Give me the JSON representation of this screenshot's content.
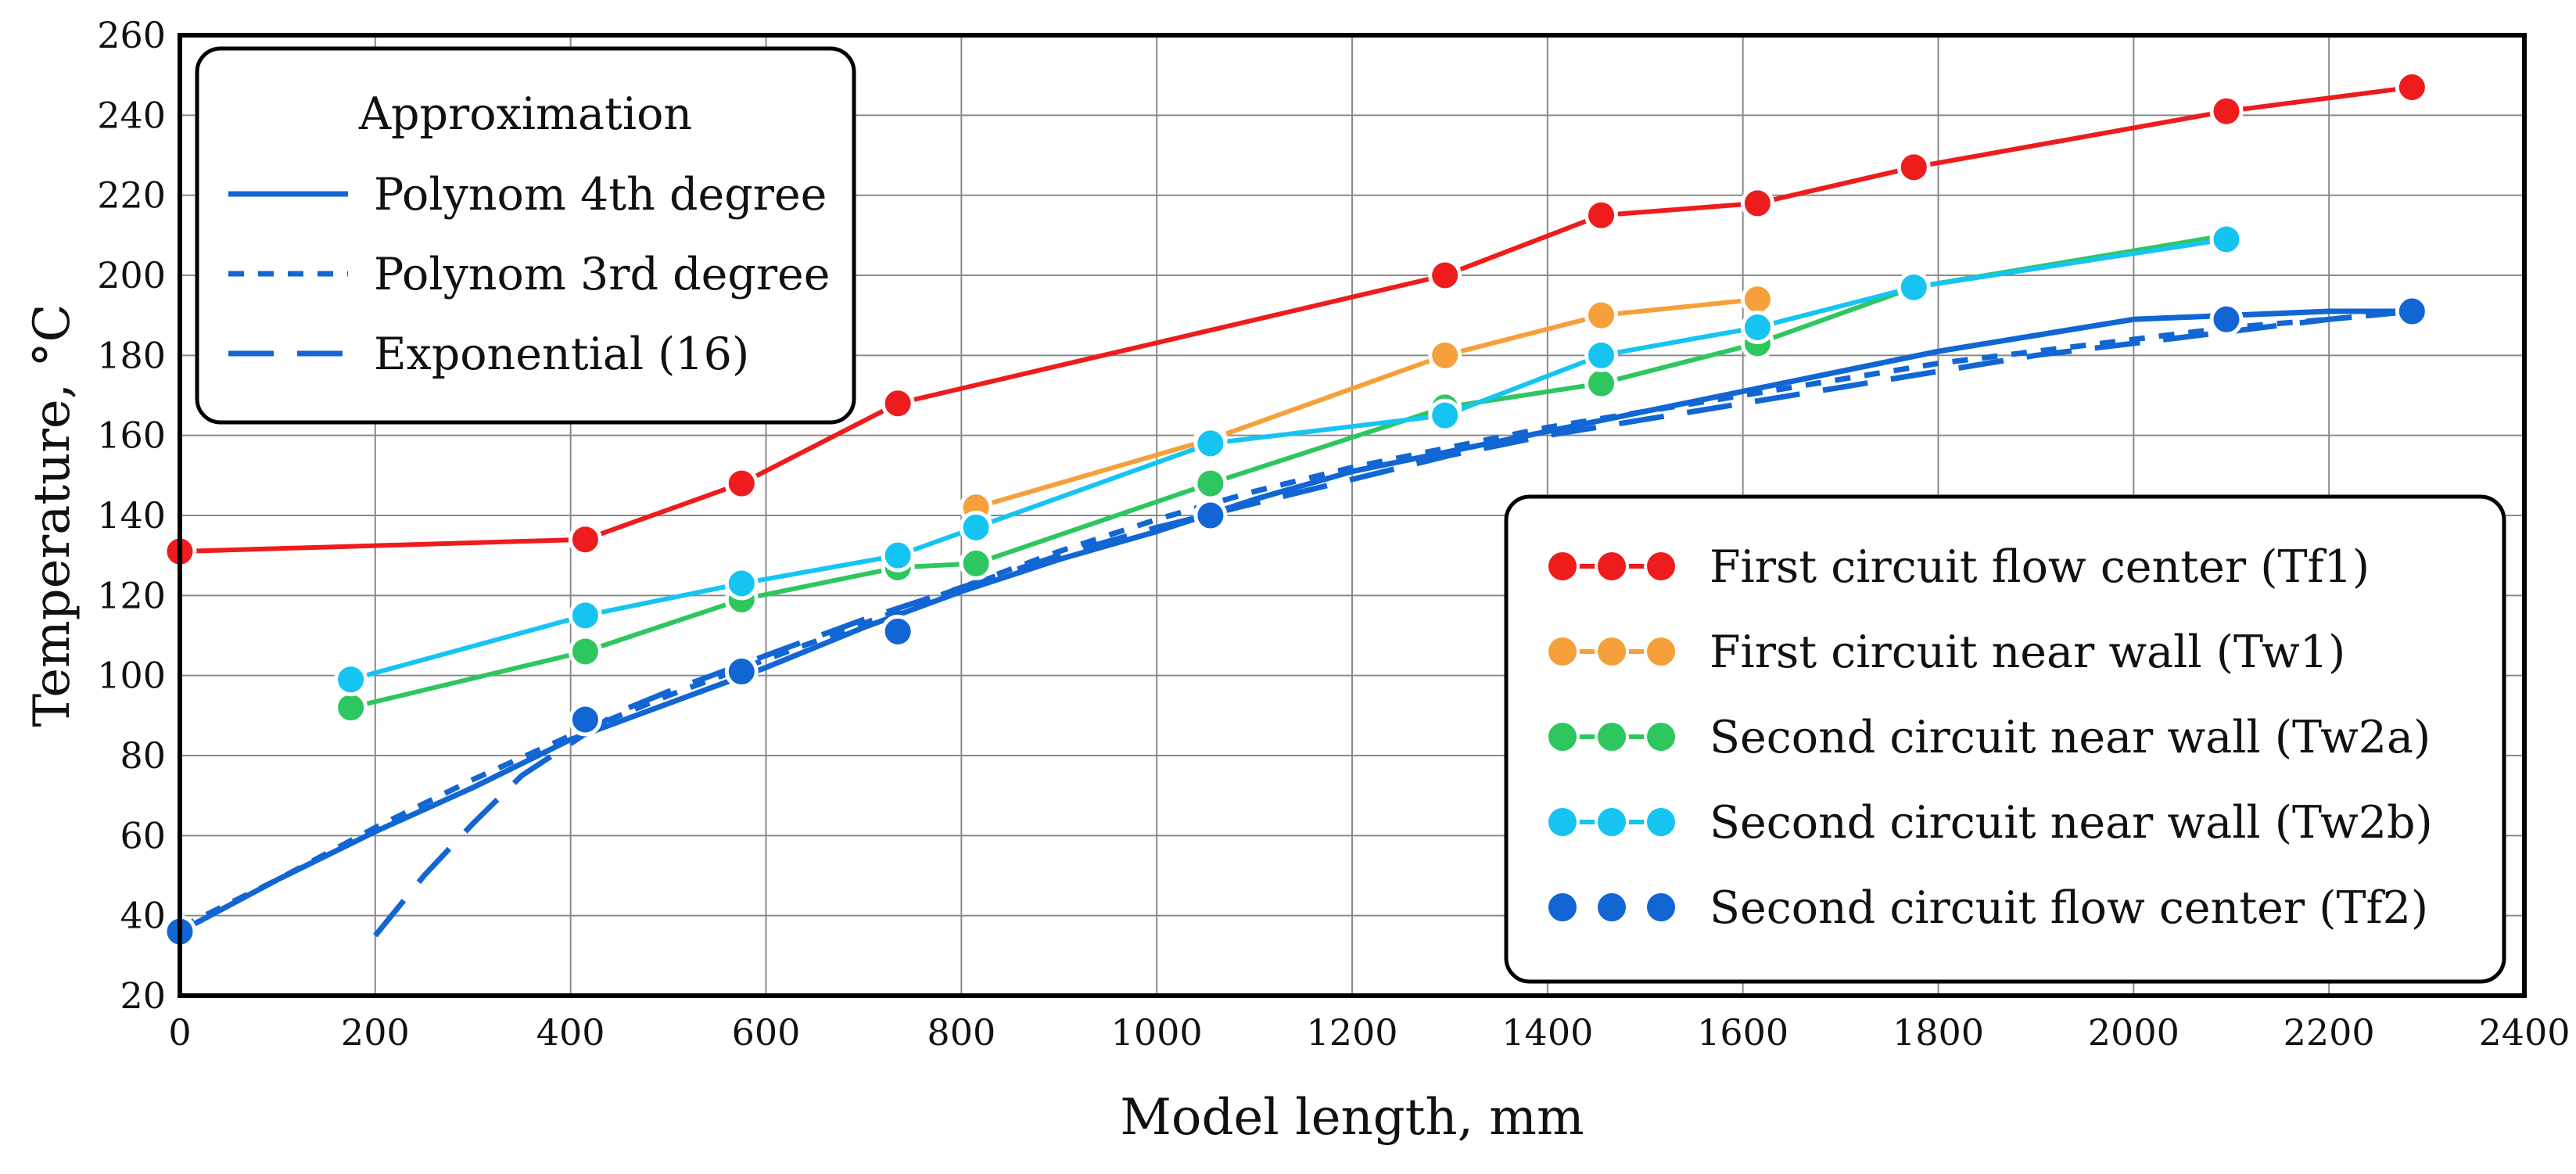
{
  "chart_data": {
    "type": "line",
    "title": "",
    "xlabel": "Model length, mm",
    "ylabel": "Temperature, °C",
    "xlim": [
      0,
      2400
    ],
    "ylim": [
      20,
      260
    ],
    "xticks": [
      0,
      200,
      400,
      600,
      800,
      1000,
      1200,
      1400,
      1600,
      1800,
      2000,
      2200,
      2400
    ],
    "yticks": [
      20,
      40,
      60,
      80,
      100,
      120,
      140,
      160,
      180,
      200,
      220,
      240,
      260
    ],
    "grid": true,
    "series": [
      {
        "name": "First circuit flow center (Tf1)",
        "color": "#ee1c1c",
        "style": "line-markers",
        "x": [
          0,
          415,
          575,
          735,
          1295,
          1455,
          1615,
          1775,
          2095,
          2285
        ],
        "y": [
          131,
          134,
          148,
          168,
          200,
          215,
          218,
          227,
          241,
          247
        ]
      },
      {
        "name": "First circuit near wall (Tw1)",
        "color": "#f5a03a",
        "style": "line-markers",
        "x": [
          815,
          1055,
          1295,
          1455,
          1615
        ],
        "y": [
          142,
          159,
          180,
          190,
          194
        ]
      },
      {
        "name": "Second circuit near wall (Tw2a)",
        "color": "#2ec65e",
        "style": "line-markers",
        "x": [
          175,
          415,
          575,
          735,
          815,
          1055,
          1295,
          1455,
          1615,
          1775,
          2095
        ],
        "y": [
          92,
          106,
          119,
          127,
          128,
          148,
          167,
          173,
          183,
          197,
          210
        ]
      },
      {
        "name": "Second circuit near wall (Tw2b)",
        "color": "#16c4f2",
        "style": "line-markers",
        "x": [
          175,
          415,
          575,
          735,
          815,
          1055,
          1295,
          1455,
          1615,
          1775,
          2095
        ],
        "y": [
          99,
          115,
          123,
          130,
          137,
          158,
          165,
          180,
          187,
          197,
          209
        ]
      },
      {
        "name": "Second circuit flow center (Tf2)",
        "color": "#1166d4",
        "style": "markers",
        "x": [
          0,
          415,
          575,
          735,
          1055,
          2095,
          2285
        ],
        "y": [
          36,
          89,
          101,
          111,
          140,
          189,
          191
        ]
      }
    ],
    "approximations": [
      {
        "name": "Polynom 4th degree",
        "style": "solid",
        "color": "#1166d4",
        "x": [
          0,
          100,
          200,
          300,
          400,
          500,
          600,
          700,
          800,
          900,
          1000,
          1100,
          1200,
          1300,
          1400,
          1500,
          1600,
          1700,
          1800,
          1900,
          2000,
          2100,
          2200,
          2285
        ],
        "y": [
          36,
          49,
          61,
          72,
          84,
          93,
          102,
          112,
          121,
          129,
          136,
          144,
          151,
          156,
          161,
          166,
          171,
          176,
          181,
          185,
          189,
          190,
          191,
          191
        ]
      },
      {
        "name": "Polynom 3rd degree",
        "style": "short-dash",
        "color": "#1166d4",
        "x": [
          0,
          100,
          200,
          300,
          400,
          500,
          600,
          700,
          800,
          900,
          1000,
          1100,
          1200,
          1300,
          1400,
          1500,
          1600,
          1700,
          1800,
          1900,
          2000,
          2100,
          2200,
          2285
        ],
        "y": [
          37,
          49,
          62,
          74,
          85,
          95,
          104,
          113,
          122,
          131,
          139,
          146,
          152,
          157,
          162,
          166,
          170,
          174,
          178,
          181,
          184,
          187,
          189,
          191
        ]
      },
      {
        "name": "Exponential (16)",
        "style": "long-dash",
        "color": "#1166d4",
        "x": [
          200,
          250,
          300,
          350,
          400,
          450,
          500,
          600,
          700,
          800,
          900,
          1000,
          1100,
          1200,
          1300,
          1400,
          1500,
          1600,
          1700,
          1800,
          1900,
          2000,
          2100,
          2200,
          2285
        ],
        "y": [
          35,
          50,
          63,
          75,
          83,
          91,
          96,
          105,
          114,
          122,
          130,
          137,
          143,
          149,
          155,
          160,
          164,
          168,
          172,
          176,
          180,
          183,
          186,
          189,
          191
        ]
      }
    ],
    "legend_approx": {
      "title": "Approximation",
      "position": "top-left"
    },
    "legend_data": {
      "position": "bottom-right"
    }
  }
}
